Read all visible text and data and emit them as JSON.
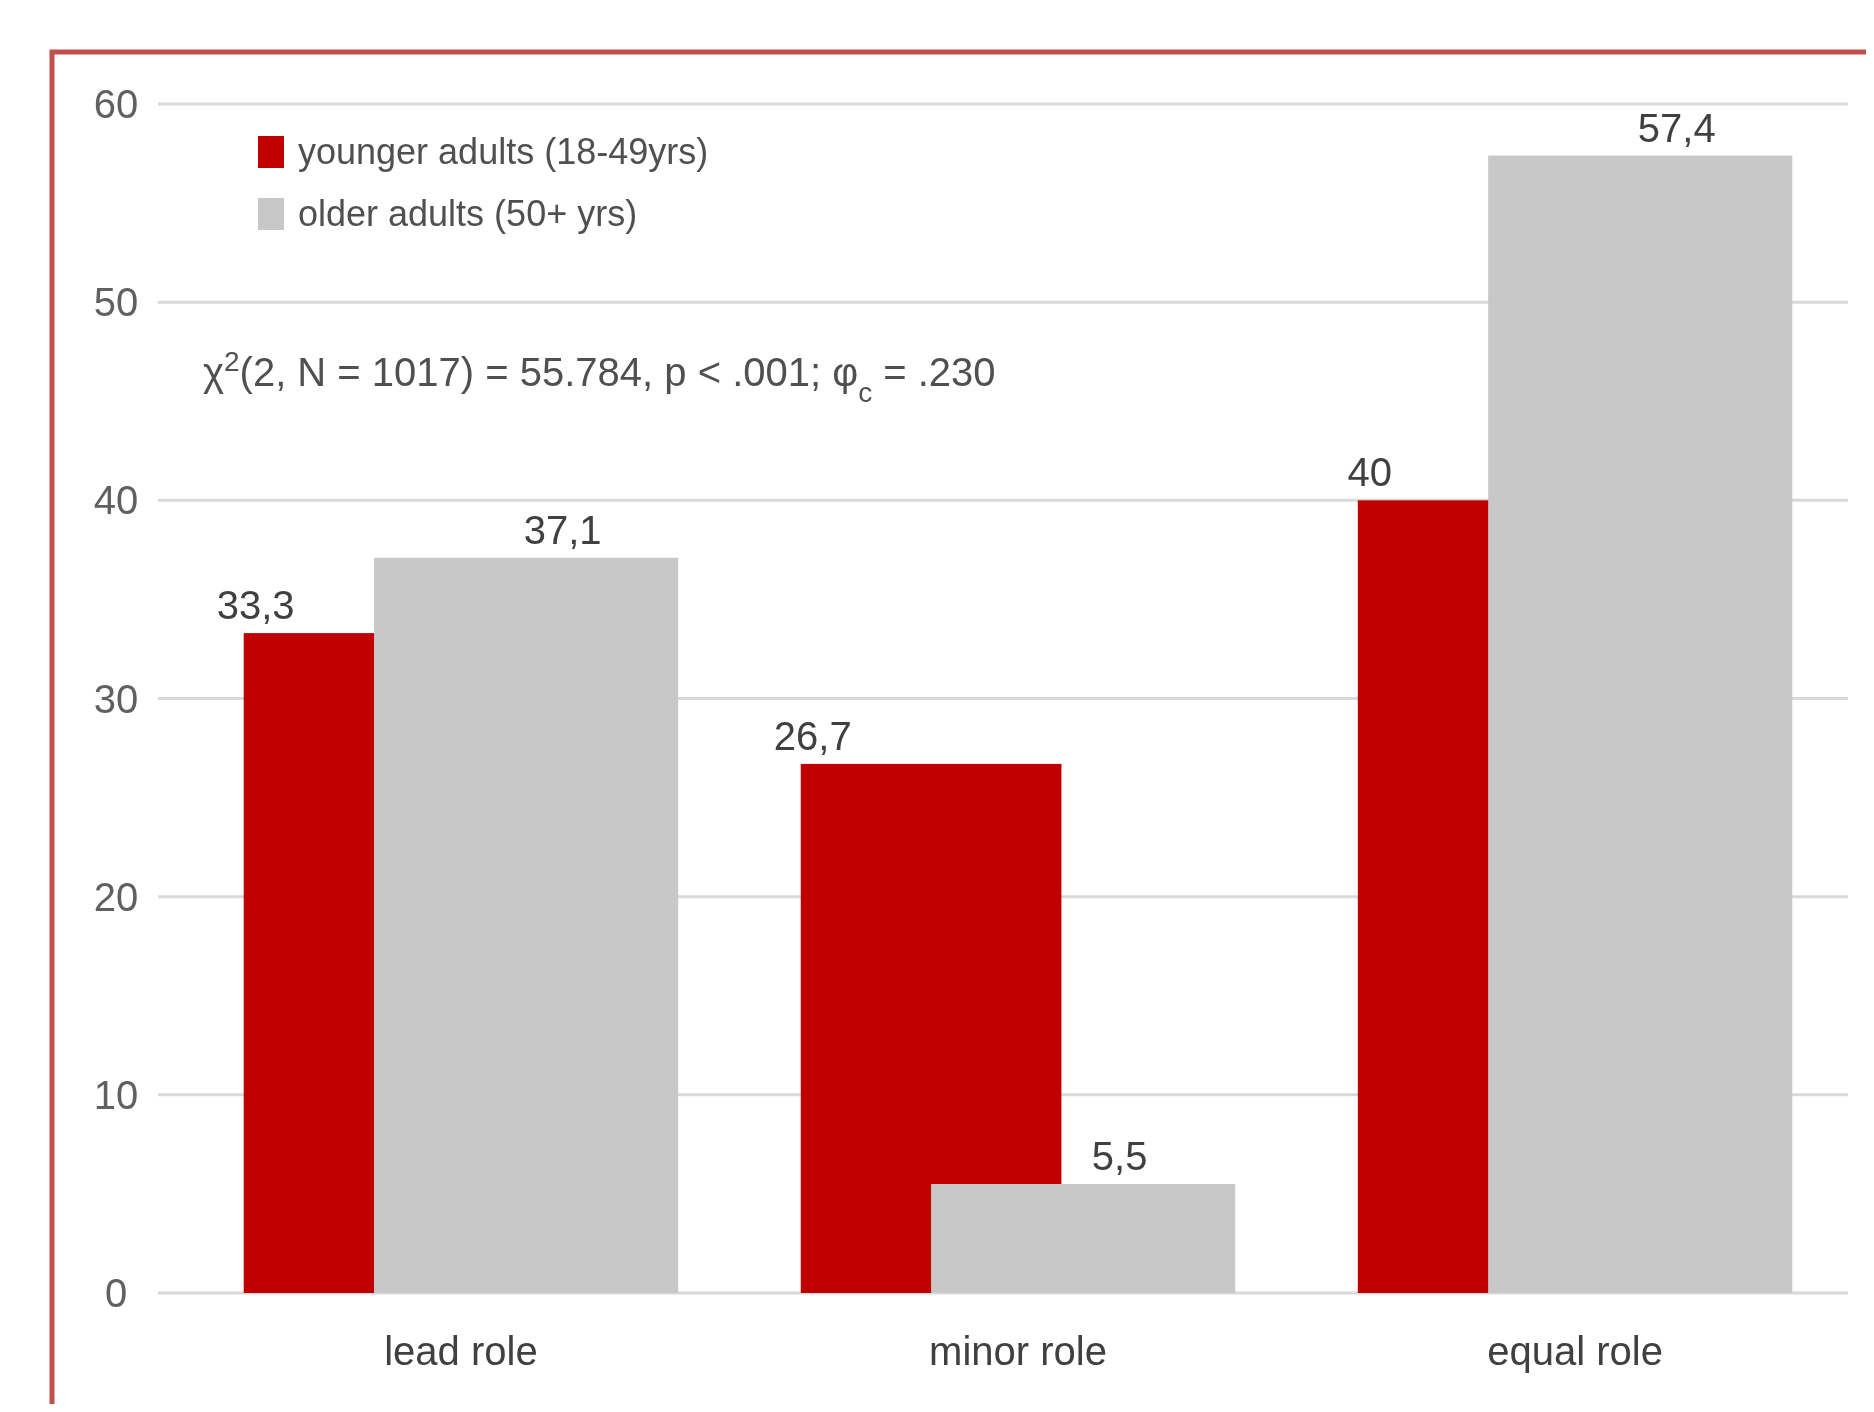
{
  "chart_data": {
    "type": "bar",
    "categories": [
      "lead role",
      "minor role",
      "equal role"
    ],
    "series": [
      {
        "name": "younger adults (18-49yrs)",
        "color": "#c00000",
        "values": [
          33.3,
          26.7,
          40
        ],
        "value_labels": [
          "33,3",
          "26,7",
          "40"
        ]
      },
      {
        "name": "older adults (50+ yrs)",
        "color": "#c8c8c8",
        "values": [
          37.1,
          5.5,
          57.4
        ],
        "value_labels": [
          "37,1",
          "5,5",
          "57,4"
        ]
      }
    ],
    "ylim": [
      0,
      60
    ],
    "yticks": [
      0,
      10,
      20,
      30,
      40,
      50,
      60
    ],
    "grid": "y",
    "legend": "top left",
    "annotations": [
      "χ$^{2}$(2, N = 1017) = 55.784, p < .001; φ$_{c}$ = .230"
    ]
  }
}
